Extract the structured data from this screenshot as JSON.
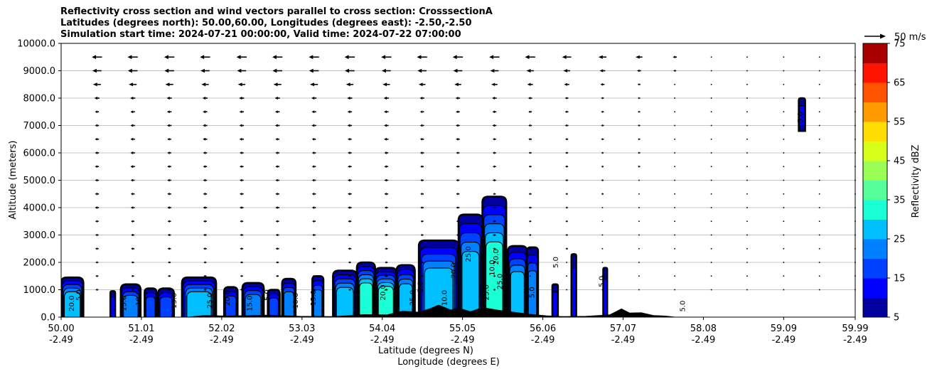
{
  "chart_data": {
    "type": "heatmap",
    "title_lines": [
      "Reflectivity cross section and wind vectors parallel to cross section: CrosssectionA",
      "Latitudes (degrees north): 50.00,60.00, Longitudes (degrees east): -2.50,-2.50",
      "Simulation start time: 2024-07-21 00:00:00, Valid time: 2024-07-22 07:00:00"
    ],
    "xlabel_1": "Latitude (degrees N)",
    "xlabel_2": "Longitude (degrees E)",
    "ylabel": "Altitude (meters)",
    "x_range": [
      50.0,
      59.99
    ],
    "y_range": [
      0,
      10000
    ],
    "x_ticks": [
      {
        "lat": "50.00",
        "lon": "-2.49",
        "value": 50.0
      },
      {
        "lat": "51.01",
        "lon": "-2.49",
        "value": 51.01
      },
      {
        "lat": "52.02",
        "lon": "-2.49",
        "value": 52.02
      },
      {
        "lat": "53.03",
        "lon": "-2.49",
        "value": 53.03
      },
      {
        "lat": "54.04",
        "lon": "-2.49",
        "value": 54.04
      },
      {
        "lat": "55.05",
        "lon": "-2.49",
        "value": 55.05
      },
      {
        "lat": "56.06",
        "lon": "-2.49",
        "value": 56.06
      },
      {
        "lat": "57.07",
        "lon": "-2.49",
        "value": 57.07
      },
      {
        "lat": "58.08",
        "lon": "-2.49",
        "value": 58.08
      },
      {
        "lat": "59.09",
        "lon": "-2.49",
        "value": 59.09
      },
      {
        "lat": "59.99",
        "lon": "-2.49",
        "value": 59.99
      }
    ],
    "y_ticks": [
      "0.0",
      "1000.0",
      "2000.0",
      "3000.0",
      "4000.0",
      "5000.0",
      "6000.0",
      "7000.0",
      "8000.0",
      "9000.0",
      "10000.0"
    ],
    "y_tick_values": [
      0,
      1000,
      2000,
      3000,
      4000,
      5000,
      6000,
      7000,
      8000,
      9000,
      10000
    ],
    "grid": "horizontal",
    "colorbar": {
      "label": "Reflectivity dBZ",
      "levels": [
        5,
        10,
        15,
        20,
        25,
        30,
        35,
        40,
        45,
        50,
        55,
        60,
        65,
        70,
        75
      ],
      "tick_labels": [
        "5",
        "15",
        "25",
        "35",
        "45",
        "55",
        "65",
        "75"
      ],
      "colors": [
        "#00009f",
        "#0000ff",
        "#0040ff",
        "#0080ff",
        "#00bfff",
        "#1affd6",
        "#55ff99",
        "#99ff55",
        "#d6ff1a",
        "#ffdd00",
        "#ff9a00",
        "#ff5500",
        "#ff1400",
        "#a80000"
      ]
    },
    "wind_key_label": "50 m/s",
    "wind_key_speed": 50,
    "wind_vectors": {
      "levels_m": [
        9500,
        9000,
        8500,
        8000,
        7500,
        7000,
        6500,
        6000,
        5500,
        5000,
        4500,
        4000,
        3500,
        3000,
        2500,
        2000,
        1500,
        1000
      ],
      "lats": [
        50.0,
        50.45,
        50.9,
        51.36,
        51.81,
        52.27,
        52.72,
        53.18,
        53.63,
        54.09,
        54.54,
        54.99,
        55.45,
        55.9,
        56.36,
        56.81,
        57.27,
        57.72,
        58.18,
        58.63,
        59.09,
        59.54,
        59.99
      ],
      "speeds": [
        [
          0,
          18,
          18,
          18,
          18,
          18,
          18,
          18,
          18,
          18,
          18,
          18,
          18,
          18,
          16,
          14,
          12,
          7,
          3,
          2,
          1,
          1,
          1
        ],
        [
          0,
          16,
          17,
          17,
          16,
          16,
          17,
          17,
          17,
          16,
          16,
          16,
          15,
          13,
          12,
          10,
          7,
          5,
          3,
          1,
          1,
          1,
          1
        ],
        [
          0,
          14,
          14,
          14,
          13,
          13,
          14,
          14,
          13,
          13,
          12,
          12,
          11,
          10,
          9,
          7,
          5,
          3,
          2,
          1,
          1,
          1,
          1
        ],
        [
          0,
          9,
          9,
          9,
          9,
          9,
          9,
          9,
          9,
          9,
          8,
          8,
          8,
          7,
          6,
          5,
          4,
          2,
          2,
          1,
          1,
          1,
          1
        ],
        [
          0,
          7,
          8,
          8,
          8,
          8,
          8,
          8,
          8,
          8,
          7,
          7,
          7,
          6,
          6,
          5,
          4,
          3,
          2,
          1,
          1,
          1,
          1
        ],
        [
          0,
          7,
          8,
          8,
          8,
          8,
          8,
          8,
          8,
          8,
          7,
          7,
          7,
          6,
          6,
          5,
          4,
          3,
          2,
          1,
          1,
          1,
          1
        ],
        [
          0,
          7,
          8,
          7,
          8,
          8,
          7,
          7,
          7,
          8,
          7,
          7,
          6,
          6,
          5,
          5,
          4,
          3,
          2,
          1,
          1,
          1,
          1
        ],
        [
          0,
          7,
          8,
          7,
          7,
          7,
          7,
          7,
          7,
          7,
          7,
          6,
          6,
          5,
          5,
          4,
          4,
          3,
          2,
          1,
          1,
          1,
          1
        ],
        [
          0,
          7,
          8,
          7,
          7,
          7,
          7,
          7,
          7,
          7,
          6,
          6,
          6,
          5,
          5,
          4,
          4,
          3,
          2,
          1,
          1,
          1,
          1
        ],
        [
          0,
          7,
          7,
          7,
          7,
          7,
          7,
          7,
          7,
          7,
          6,
          6,
          6,
          5,
          5,
          4,
          3,
          3,
          2,
          1,
          1,
          1,
          1
        ],
        [
          0,
          7,
          7,
          7,
          7,
          7,
          7,
          7,
          7,
          7,
          6,
          6,
          5,
          5,
          4,
          4,
          3,
          2,
          2,
          1,
          1,
          1,
          1
        ],
        [
          0,
          7,
          7,
          7,
          7,
          7,
          7,
          7,
          7,
          6,
          6,
          6,
          5,
          5,
          4,
          3,
          3,
          2,
          2,
          1,
          1,
          1,
          1
        ],
        [
          0,
          6,
          6,
          6,
          6,
          6,
          6,
          6,
          6,
          6,
          5,
          5,
          5,
          4,
          4,
          3,
          3,
          2,
          1,
          1,
          1,
          1,
          1
        ],
        [
          0,
          6,
          6,
          6,
          6,
          6,
          6,
          6,
          6,
          6,
          5,
          5,
          5,
          4,
          4,
          3,
          3,
          2,
          1,
          1,
          1,
          1,
          1
        ],
        [
          0,
          6,
          6,
          6,
          6,
          6,
          6,
          6,
          6,
          5,
          5,
          5,
          5,
          4,
          4,
          3,
          2,
          2,
          1,
          1,
          1,
          1,
          1
        ],
        [
          0,
          5,
          5,
          5,
          5,
          5,
          5,
          5,
          5,
          5,
          5,
          4,
          4,
          4,
          3,
          3,
          2,
          2,
          1,
          1,
          1,
          1,
          1
        ],
        [
          0,
          5,
          5,
          5,
          5,
          5,
          5,
          5,
          5,
          5,
          5,
          4,
          4,
          3,
          3,
          3,
          2,
          2,
          1,
          1,
          1,
          1,
          1
        ],
        [
          0,
          5,
          5,
          5,
          5,
          5,
          5,
          5,
          5,
          5,
          4,
          4,
          4,
          3,
          3,
          3,
          2,
          2,
          1,
          1,
          1,
          1,
          1
        ]
      ]
    },
    "reflectivity_cells": [
      {
        "lat0": 50.0,
        "lat1": 50.28,
        "top_m": 1450,
        "max_dbz": 25
      },
      {
        "lat0": 50.62,
        "lat1": 50.68,
        "top_m": 950,
        "max_dbz": 10
      },
      {
        "lat0": 50.75,
        "lat1": 51.0,
        "top_m": 1200,
        "max_dbz": 20
      },
      {
        "lat0": 51.05,
        "lat1": 51.2,
        "top_m": 1050,
        "max_dbz": 15
      },
      {
        "lat0": 51.22,
        "lat1": 51.42,
        "top_m": 1050,
        "max_dbz": 15
      },
      {
        "lat0": 51.52,
        "lat1": 51.95,
        "top_m": 1450,
        "max_dbz": 25
      },
      {
        "lat0": 52.05,
        "lat1": 52.22,
        "top_m": 1100,
        "max_dbz": 15
      },
      {
        "lat0": 52.28,
        "lat1": 52.55,
        "top_m": 1250,
        "max_dbz": 20
      },
      {
        "lat0": 52.6,
        "lat1": 52.75,
        "top_m": 1000,
        "max_dbz": 15
      },
      {
        "lat0": 52.78,
        "lat1": 52.95,
        "top_m": 1400,
        "max_dbz": 20
      },
      {
        "lat0": 53.16,
        "lat1": 53.3,
        "top_m": 1500,
        "max_dbz": 20
      },
      {
        "lat0": 53.42,
        "lat1": 53.72,
        "top_m": 1700,
        "max_dbz": 25
      },
      {
        "lat0": 53.72,
        "lat1": 53.95,
        "top_m": 2000,
        "max_dbz": 30
      },
      {
        "lat0": 53.95,
        "lat1": 54.22,
        "top_m": 1800,
        "max_dbz": 30
      },
      {
        "lat0": 54.22,
        "lat1": 54.45,
        "top_m": 1900,
        "max_dbz": 25
      },
      {
        "lat0": 54.5,
        "lat1": 55.0,
        "top_m": 2800,
        "max_dbz": 25
      },
      {
        "lat0": 55.0,
        "lat1": 55.3,
        "top_m": 3750,
        "max_dbz": 25
      },
      {
        "lat0": 55.3,
        "lat1": 55.6,
        "top_m": 4400,
        "max_dbz": 30
      },
      {
        "lat0": 55.62,
        "lat1": 55.86,
        "top_m": 2600,
        "max_dbz": 25
      },
      {
        "lat0": 55.86,
        "lat1": 56.0,
        "top_m": 2550,
        "max_dbz": 20
      },
      {
        "lat0": 56.18,
        "lat1": 56.25,
        "top_m": 1200,
        "max_dbz": 10
      },
      {
        "lat0": 56.42,
        "lat1": 56.48,
        "top_m": 2300,
        "max_dbz": 10
      },
      {
        "lat0": 56.82,
        "lat1": 56.87,
        "top_m": 1800,
        "max_dbz": 10
      },
      {
        "lat0": 59.28,
        "lat1": 59.36,
        "top_m": 8000,
        "bottom_m": 6800,
        "max_dbz": 10
      }
    ],
    "contour_labels": [
      {
        "text": "5.0",
        "lat": 50.25,
        "alt": 800
      },
      {
        "text": "20.0",
        "lat": 50.16,
        "alt": 500
      },
      {
        "text": "15.0",
        "lat": 50.82,
        "alt": 500
      },
      {
        "text": "10.0",
        "lat": 51.0,
        "alt": 700
      },
      {
        "text": "15.0",
        "lat": 51.45,
        "alt": 600
      },
      {
        "text": "25.0",
        "lat": 51.9,
        "alt": 600
      },
      {
        "text": "20.0",
        "lat": 52.12,
        "alt": 700
      },
      {
        "text": "15.0",
        "lat": 52.4,
        "alt": 500
      },
      {
        "text": "5.0",
        "lat": 52.62,
        "alt": 800
      },
      {
        "text": "10.0",
        "lat": 52.98,
        "alt": 600
      },
      {
        "text": "15.0",
        "lat": 53.2,
        "alt": 700
      },
      {
        "text": "20.0",
        "lat": 54.08,
        "alt": 900
      },
      {
        "text": "25.0",
        "lat": 54.45,
        "alt": 700
      },
      {
        "text": "5.0",
        "lat": 54.55,
        "alt": 1100
      },
      {
        "text": "10.0",
        "lat": 54.85,
        "alt": 700
      },
      {
        "text": "20.0",
        "lat": 54.97,
        "alt": 1700
      },
      {
        "text": "25.0",
        "lat": 55.15,
        "alt": 2300
      },
      {
        "text": "10.0",
        "lat": 55.45,
        "alt": 1800
      },
      {
        "text": "25.0",
        "lat": 55.38,
        "alt": 900
      },
      {
        "text": "25.0",
        "lat": 55.55,
        "alt": 1300
      },
      {
        "text": "20.0",
        "lat": 55.5,
        "alt": 2200
      },
      {
        "text": "5.0",
        "lat": 55.95,
        "alt": 900
      },
      {
        "text": "5.0",
        "lat": 56.25,
        "alt": 2000
      },
      {
        "text": "5.0",
        "lat": 56.83,
        "alt": 1300
      },
      {
        "text": "5.0",
        "lat": 57.85,
        "alt": 400
      },
      {
        "text": "5.0",
        "lat": 59.33,
        "alt": 7300
      }
    ],
    "terrain": [
      [
        50.0,
        0
      ],
      [
        51.6,
        0
      ],
      [
        51.8,
        60
      ],
      [
        52.1,
        40
      ],
      [
        52.6,
        70
      ],
      [
        53.0,
        30
      ],
      [
        53.4,
        20
      ],
      [
        53.6,
        50
      ],
      [
        53.8,
        90
      ],
      [
        54.1,
        80
      ],
      [
        54.3,
        220
      ],
      [
        54.5,
        180
      ],
      [
        54.65,
        320
      ],
      [
        54.75,
        440
      ],
      [
        54.9,
        260
      ],
      [
        55.0,
        330
      ],
      [
        55.15,
        200
      ],
      [
        55.3,
        350
      ],
      [
        55.5,
        250
      ],
      [
        55.7,
        180
      ],
      [
        55.9,
        100
      ],
      [
        56.1,
        50
      ],
      [
        56.3,
        20
      ],
      [
        56.6,
        30
      ],
      [
        56.9,
        80
      ],
      [
        57.05,
        300
      ],
      [
        57.15,
        150
      ],
      [
        57.3,
        160
      ],
      [
        57.45,
        60
      ],
      [
        57.6,
        40
      ],
      [
        57.72,
        0
      ],
      [
        59.99,
        0
      ]
    ]
  }
}
